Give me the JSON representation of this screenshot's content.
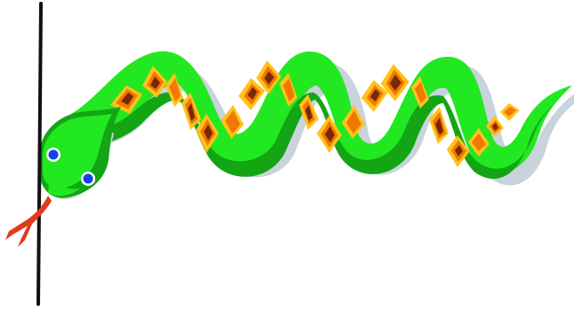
{
  "scene": {
    "subject": "snake-clipart",
    "colors": {
      "background": "#ffffff",
      "pole": "#111111",
      "shadow": "#c9d3dc",
      "body_light": "#22e822",
      "body_dark": "#14a514",
      "pattern_yellow": "#ffc21a",
      "pattern_orange": "#f07800",
      "pattern_brown": "#7a2608",
      "tongue": "#e23a1c",
      "eye_blue": "#1640e6",
      "eye_white": "#ffffff"
    },
    "icons": [
      "pole",
      "snake-body",
      "snake-head",
      "snake-eye",
      "snake-tongue"
    ]
  }
}
